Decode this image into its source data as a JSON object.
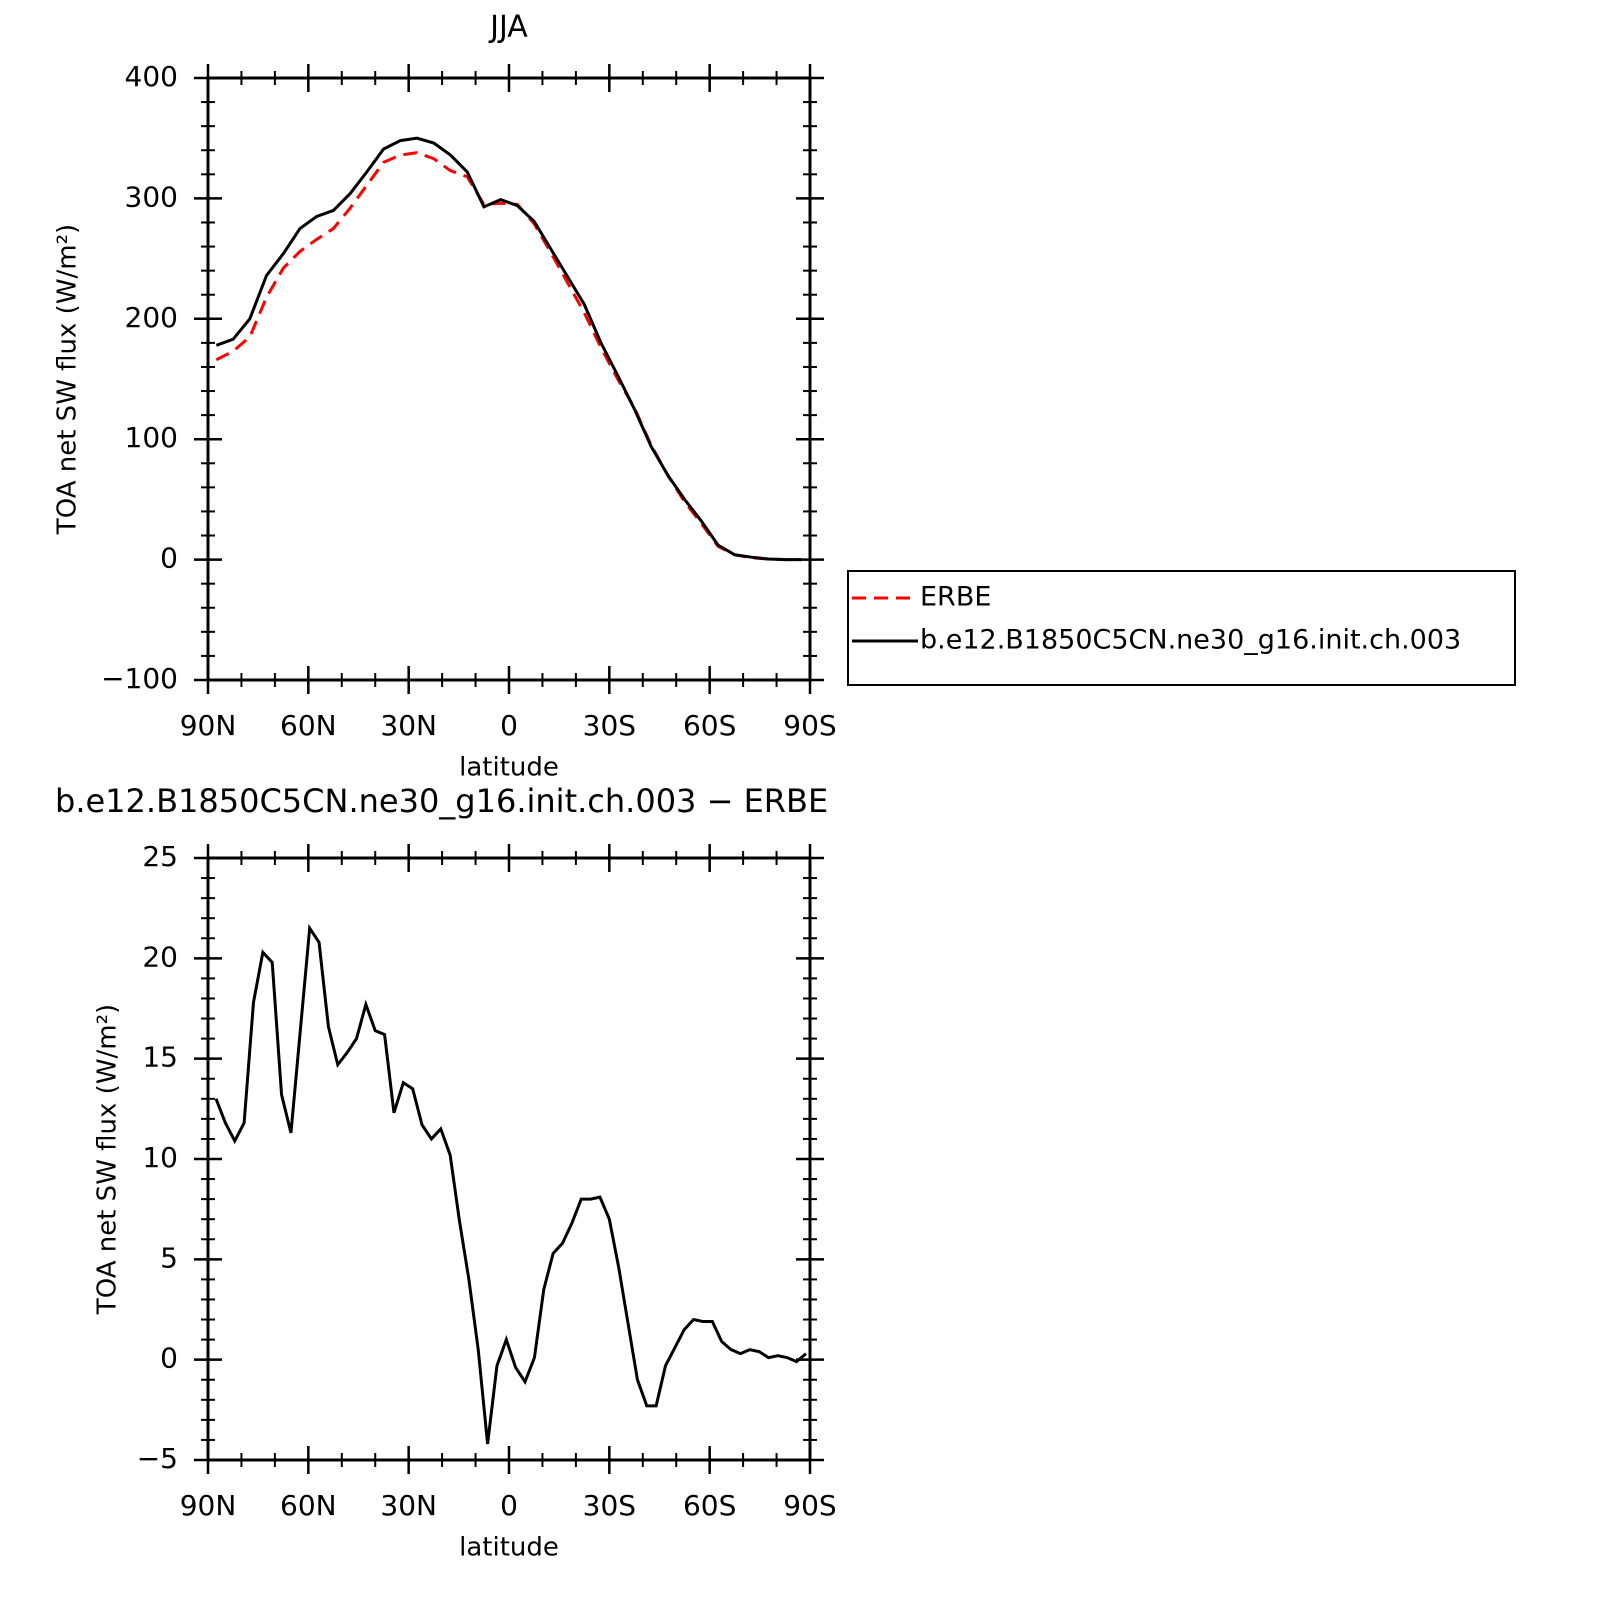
{
  "chart_data": [
    {
      "type": "line",
      "title": "JJA",
      "xlabel": "latitude",
      "ylabel": "TOA net SW flux (W/m²)",
      "x": [
        87.5,
        82.5,
        77.5,
        72.5,
        67.5,
        62.5,
        57.5,
        52.5,
        47.5,
        42.5,
        37.5,
        32.5,
        27.5,
        22.5,
        17.5,
        12.5,
        7.5,
        2.5,
        -2.5,
        -7.5,
        -12.5,
        -17.5,
        -22.5,
        -27.5,
        -32.5,
        -37.5,
        -42.5,
        -47.5,
        -52.5,
        -57.5,
        -62.5,
        -67.5,
        -72.5,
        -77.5,
        -82.5,
        -87.5
      ],
      "series": [
        {
          "name": "ERBE",
          "color": "#ff0000",
          "linestyle": "dashed",
          "values": [
            166,
            173,
            185,
            218,
            242,
            256,
            266,
            275,
            292,
            311,
            330,
            336,
            338,
            333,
            323,
            318,
            295,
            296,
            295,
            279,
            255,
            230,
            205,
            176,
            150,
            126,
            95,
            70,
            48,
            30,
            11,
            4,
            1.5,
            0.5,
            0,
            0
          ]
        },
        {
          "name": "b.e12.B1850C5CN.ne30_g16.init.ch.003",
          "color": "#000000",
          "linestyle": "solid",
          "values": [
            178,
            183,
            200,
            236,
            254,
            275,
            285,
            290,
            304,
            322,
            341,
            348,
            350,
            346,
            336,
            322,
            293,
            299,
            294,
            281,
            258,
            235,
            212,
            180,
            153,
            125,
            94,
            70,
            50,
            32,
            12,
            4,
            2,
            0.5,
            0,
            0
          ]
        }
      ],
      "xlim": [
        90,
        -90
      ],
      "xticks": [
        {
          "value": 90,
          "label": "90N"
        },
        {
          "value": 60,
          "label": "60N"
        },
        {
          "value": 30,
          "label": "30N"
        },
        0,
        {
          "value": -30,
          "label": "30S"
        },
        {
          "value": -60,
          "label": "60S"
        },
        {
          "value": -90,
          "label": "90S"
        }
      ],
      "xminor": 10,
      "ylim": [
        -100,
        400
      ],
      "yticks": [
        {
          "value": -100,
          "label": "−100"
        },
        0,
        100,
        200,
        300,
        400
      ],
      "yminor": 20,
      "legend": "right"
    },
    {
      "type": "line",
      "title": "b.e12.B1850C5CN.ne30_g16.init.ch.003 − ERBE",
      "xlabel": "latitude",
      "ylabel": "TOA net SW flux (W/m²)",
      "x": [
        87.6,
        84.8,
        82,
        79.2,
        76.4,
        73.6,
        70.8,
        68,
        65.2,
        62.4,
        59.6,
        56.8,
        54,
        51.2,
        48.4,
        45.6,
        42.8,
        40,
        37.2,
        34.4,
        31.6,
        28.8,
        26,
        23.2,
        20.4,
        17.6,
        14.8,
        12,
        9.2,
        6.4,
        3.6,
        0.8,
        -2,
        -4.8,
        -7.6,
        -10.4,
        -13.2,
        -16,
        -18.8,
        -21.6,
        -24.4,
        -27.2,
        -30,
        -32.8,
        -35.6,
        -38.4,
        -41.2,
        -44,
        -46.8,
        -49.6,
        -52.4,
        -55.2,
        -58,
        -60.8,
        -63.6,
        -66.4,
        -69.2,
        -72,
        -74.8,
        -77.6,
        -80.4,
        -83.2,
        -86,
        -88.8
      ],
      "series": [
        {
          "color": "#000000",
          "linestyle": "solid",
          "values": [
            13.0,
            11.8,
            10.9,
            11.8,
            17.8,
            20.3,
            19.8,
            13.2,
            11.3,
            16.4,
            21.5,
            20.8,
            16.6,
            14.7,
            15.3,
            16.0,
            17.7,
            16.4,
            16.2,
            12.3,
            13.8,
            13.5,
            11.7,
            11.0,
            11.5,
            10.2,
            6.9,
            4.0,
            0.5,
            -4.2,
            -0.3,
            1.0,
            -0.4,
            -1.1,
            0.1,
            3.5,
            5.3,
            5.8,
            6.8,
            8.0,
            8.0,
            8.1,
            7.0,
            4.6,
            1.8,
            -1.0,
            -2.3,
            -2.3,
            -0.3,
            0.6,
            1.5,
            2.0,
            1.9,
            1.9,
            0.9,
            0.5,
            0.3,
            0.5,
            0.4,
            0.1,
            0.2,
            0.1,
            -0.1,
            0.3
          ]
        }
      ],
      "xlim": [
        90,
        -90
      ],
      "xticks": [
        {
          "value": 90,
          "label": "90N"
        },
        {
          "value": 60,
          "label": "60N"
        },
        {
          "value": 30,
          "label": "30N"
        },
        0,
        {
          "value": -30,
          "label": "30S"
        },
        {
          "value": -60,
          "label": "60S"
        },
        {
          "value": -90,
          "label": "90S"
        }
      ],
      "xminor": 10,
      "ylim": [
        -5,
        25
      ],
      "yticks": [
        {
          "value": -5,
          "label": "−5"
        },
        0,
        5,
        10,
        15,
        20,
        25
      ],
      "yminor": 1
    }
  ]
}
